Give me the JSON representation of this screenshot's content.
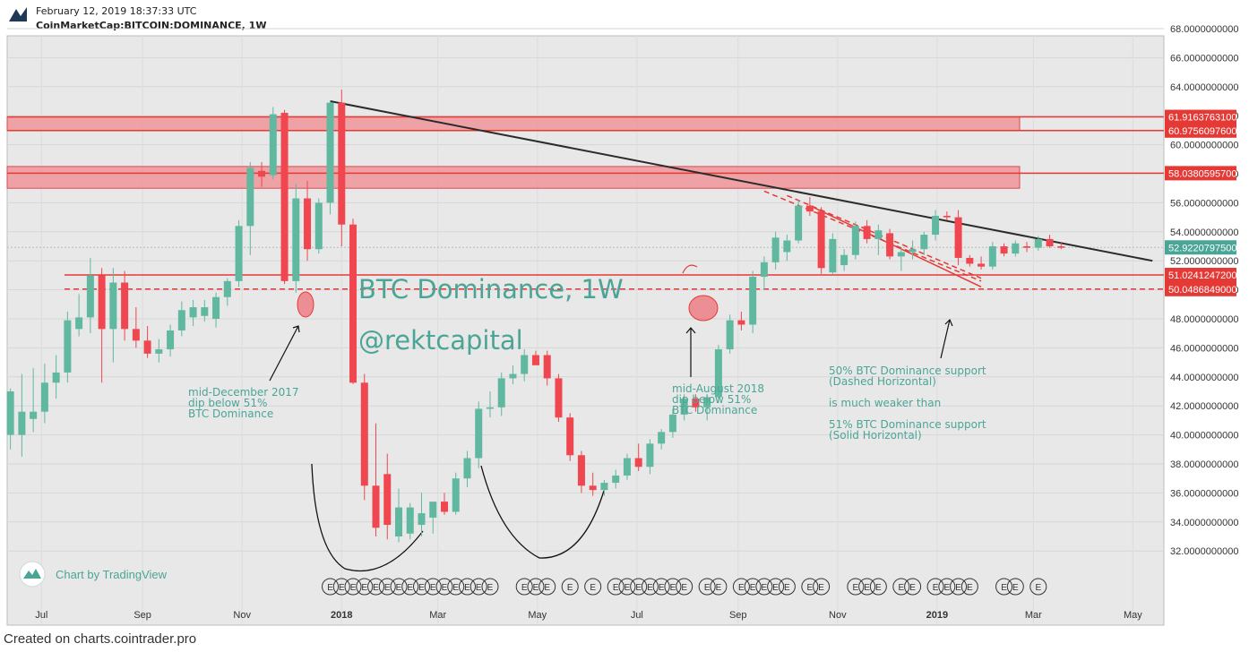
{
  "header": {
    "datetime": "February 12, 2019 18:37:33 UTC",
    "symbol": "CoinMarketCap:BITCOIN:DOMINANCE, 1W"
  },
  "footer": "Created on charts.cointrader.pro",
  "watermark": "Chart by TradingView",
  "chart_data": {
    "type": "candlestick",
    "title": "BTC Dominance, 1W",
    "subtitle": "@rektcapital",
    "ylim": [
      30.5,
      69
    ],
    "y_ticks": [
      "68.0000000000",
      "66.0000000000",
      "64.0000000000",
      "62.0000000000",
      "60.0000000000",
      "58.0000000000",
      "56.0000000000",
      "54.0000000000",
      "52.0000000000",
      "50.0000000000",
      "48.0000000000",
      "46.0000000000",
      "44.0000000000",
      "42.0000000000",
      "40.0000000000",
      "38.0000000000",
      "36.0000000000",
      "34.0000000000",
      "32.0000000000"
    ],
    "x_ticks": [
      "Jul",
      "Sep",
      "Nov",
      "2018",
      "Mar",
      "May",
      "Jul",
      "Sep",
      "Nov",
      "2019",
      "Mar",
      "May"
    ],
    "x_range": [
      "2017-06-10",
      "2019-05-20"
    ],
    "grid": true,
    "candles": [
      {
        "date": "2017-06-12",
        "o": 40.0,
        "h": 43.2,
        "l": 39.0,
        "c": 43.0
      },
      {
        "date": "2017-06-19",
        "o": 40.0,
        "h": 44.2,
        "l": 38.5,
        "c": 41.6
      },
      {
        "date": "2017-06-26",
        "o": 41.1,
        "h": 44.6,
        "l": 40.2,
        "c": 41.6
      },
      {
        "date": "2017-07-03",
        "o": 41.6,
        "h": 44.9,
        "l": 40.8,
        "c": 43.6
      },
      {
        "date": "2017-07-10",
        "o": 43.6,
        "h": 45.5,
        "l": 42.5,
        "c": 44.3
      },
      {
        "date": "2017-07-17",
        "o": 44.3,
        "h": 48.5,
        "l": 43.6,
        "c": 47.9
      },
      {
        "date": "2017-07-24",
        "o": 47.3,
        "h": 49.7,
        "l": 46.8,
        "c": 48.1
      },
      {
        "date": "2017-07-31",
        "o": 48.1,
        "h": 52.2,
        "l": 47.0,
        "c": 51.0
      },
      {
        "date": "2017-08-07",
        "o": 51.0,
        "h": 51.5,
        "l": 43.6,
        "c": 47.3
      },
      {
        "date": "2017-08-14",
        "o": 47.3,
        "h": 51.5,
        "l": 45.0,
        "c": 50.5
      },
      {
        "date": "2017-08-21",
        "o": 50.5,
        "h": 51.3,
        "l": 46.5,
        "c": 47.3
      },
      {
        "date": "2017-08-28",
        "o": 47.3,
        "h": 48.8,
        "l": 46.0,
        "c": 46.5
      },
      {
        "date": "2017-09-04",
        "o": 46.5,
        "h": 47.5,
        "l": 45.3,
        "c": 45.6
      },
      {
        "date": "2017-09-11",
        "o": 45.6,
        "h": 46.6,
        "l": 45.0,
        "c": 45.9
      },
      {
        "date": "2017-09-18",
        "o": 45.9,
        "h": 47.6,
        "l": 45.4,
        "c": 47.2
      },
      {
        "date": "2017-09-25",
        "o": 47.2,
        "h": 49.2,
        "l": 46.8,
        "c": 48.6
      },
      {
        "date": "2017-10-02",
        "o": 48.1,
        "h": 49.3,
        "l": 47.5,
        "c": 48.8
      },
      {
        "date": "2017-10-09",
        "o": 48.2,
        "h": 49.3,
        "l": 47.8,
        "c": 48.8
      },
      {
        "date": "2017-10-16",
        "o": 48.0,
        "h": 49.8,
        "l": 47.4,
        "c": 49.5
      },
      {
        "date": "2017-10-23",
        "o": 49.5,
        "h": 50.8,
        "l": 48.9,
        "c": 50.6
      },
      {
        "date": "2017-10-30",
        "o": 50.6,
        "h": 54.8,
        "l": 50.2,
        "c": 54.4
      },
      {
        "date": "2017-11-06",
        "o": 54.4,
        "h": 58.8,
        "l": 52.4,
        "c": 58.4
      },
      {
        "date": "2017-11-13",
        "o": 58.2,
        "h": 58.8,
        "l": 57.1,
        "c": 57.8
      },
      {
        "date": "2017-11-20",
        "o": 57.9,
        "h": 62.6,
        "l": 57.6,
        "c": 62.1
      },
      {
        "date": "2017-11-27",
        "o": 62.2,
        "h": 62.4,
        "l": 50.4,
        "c": 50.6
      },
      {
        "date": "2017-12-04",
        "o": 50.6,
        "h": 57.3,
        "l": 49.8,
        "c": 56.3
      },
      {
        "date": "2017-12-11",
        "o": 56.3,
        "h": 57.5,
        "l": 52.0,
        "c": 52.8
      },
      {
        "date": "2017-12-18",
        "o": 52.8,
        "h": 56.3,
        "l": 52.5,
        "c": 56.0
      },
      {
        "date": "2017-12-25",
        "o": 56.0,
        "h": 63.0,
        "l": 55.2,
        "c": 62.9
      },
      {
        "date": "2018-01-01",
        "o": 62.9,
        "h": 63.8,
        "l": 53.0,
        "c": 54.5
      },
      {
        "date": "2018-01-08",
        "o": 54.5,
        "h": 54.9,
        "l": 43.5,
        "c": 43.6
      },
      {
        "date": "2018-01-15",
        "o": 43.6,
        "h": 44.2,
        "l": 35.5,
        "c": 36.5
      },
      {
        "date": "2018-01-22",
        "o": 36.5,
        "h": 40.8,
        "l": 33.0,
        "c": 33.6
      },
      {
        "date": "2018-01-29",
        "o": 37.3,
        "h": 38.7,
        "l": 32.8,
        "c": 33.8
      },
      {
        "date": "2018-02-05",
        "o": 33.0,
        "h": 36.3,
        "l": 32.6,
        "c": 35.0
      },
      {
        "date": "2018-02-12",
        "o": 33.2,
        "h": 35.3,
        "l": 32.8,
        "c": 35.0
      },
      {
        "date": "2018-02-19",
        "o": 33.8,
        "h": 36.0,
        "l": 33.0,
        "c": 34.6
      },
      {
        "date": "2018-02-26",
        "o": 34.3,
        "h": 35.3,
        "l": 33.2,
        "c": 35.4
      },
      {
        "date": "2018-03-05",
        "o": 35.4,
        "h": 36.0,
        "l": 34.5,
        "c": 34.7
      },
      {
        "date": "2018-03-12",
        "o": 34.7,
        "h": 37.4,
        "l": 34.5,
        "c": 37.0
      },
      {
        "date": "2018-03-19",
        "o": 37.0,
        "h": 38.9,
        "l": 36.4,
        "c": 38.4
      },
      {
        "date": "2018-03-26",
        "o": 38.4,
        "h": 42.3,
        "l": 37.7,
        "c": 41.8
      },
      {
        "date": "2018-04-02",
        "o": 41.8,
        "h": 43.0,
        "l": 41.2,
        "c": 41.9
      },
      {
        "date": "2018-04-09",
        "o": 41.9,
        "h": 44.3,
        "l": 41.3,
        "c": 43.9
      },
      {
        "date": "2018-04-16",
        "o": 43.9,
        "h": 44.8,
        "l": 43.5,
        "c": 44.2
      },
      {
        "date": "2018-04-23",
        "o": 44.2,
        "h": 45.9,
        "l": 43.7,
        "c": 45.5
      },
      {
        "date": "2018-04-30",
        "o": 45.5,
        "h": 45.8,
        "l": 44.9,
        "c": 44.8
      },
      {
        "date": "2018-05-07",
        "o": 45.5,
        "h": 45.8,
        "l": 43.4,
        "c": 43.9
      },
      {
        "date": "2018-05-14",
        "o": 43.9,
        "h": 44.2,
        "l": 40.9,
        "c": 41.2
      },
      {
        "date": "2018-05-21",
        "o": 41.2,
        "h": 41.5,
        "l": 38.2,
        "c": 38.6
      },
      {
        "date": "2018-05-28",
        "o": 38.6,
        "h": 38.9,
        "l": 36.0,
        "c": 36.5
      },
      {
        "date": "2018-06-04",
        "o": 36.5,
        "h": 37.4,
        "l": 35.8,
        "c": 36.2
      },
      {
        "date": "2018-06-11",
        "o": 36.2,
        "h": 36.9,
        "l": 35.8,
        "c": 36.7
      },
      {
        "date": "2018-06-18",
        "o": 36.7,
        "h": 37.6,
        "l": 36.3,
        "c": 37.2
      },
      {
        "date": "2018-06-25",
        "o": 37.2,
        "h": 38.7,
        "l": 36.9,
        "c": 38.4
      },
      {
        "date": "2018-07-02",
        "o": 38.4,
        "h": 39.4,
        "l": 37.5,
        "c": 37.8
      },
      {
        "date": "2018-07-09",
        "o": 37.8,
        "h": 39.7,
        "l": 37.3,
        "c": 39.4
      },
      {
        "date": "2018-07-16",
        "o": 39.4,
        "h": 40.4,
        "l": 39.0,
        "c": 40.2
      },
      {
        "date": "2018-07-23",
        "o": 40.2,
        "h": 41.8,
        "l": 39.8,
        "c": 41.4
      },
      {
        "date": "2018-07-30",
        "o": 41.4,
        "h": 42.8,
        "l": 41.0,
        "c": 42.5
      },
      {
        "date": "2018-08-06",
        "o": 42.5,
        "h": 42.8,
        "l": 41.6,
        "c": 41.9
      },
      {
        "date": "2018-08-13",
        "o": 41.9,
        "h": 42.8,
        "l": 41.0,
        "c": 42.6
      },
      {
        "date": "2018-08-20",
        "o": 42.6,
        "h": 46.2,
        "l": 42.2,
        "c": 45.9
      },
      {
        "date": "2018-08-27",
        "o": 45.9,
        "h": 48.3,
        "l": 45.6,
        "c": 47.9
      },
      {
        "date": "2018-09-03",
        "o": 47.9,
        "h": 48.5,
        "l": 47.2,
        "c": 47.6
      },
      {
        "date": "2018-09-10",
        "o": 47.6,
        "h": 51.3,
        "l": 47.0,
        "c": 50.9
      },
      {
        "date": "2018-09-17",
        "o": 50.9,
        "h": 52.3,
        "l": 50.0,
        "c": 51.9
      },
      {
        "date": "2018-09-24",
        "o": 51.9,
        "h": 54.0,
        "l": 51.4,
        "c": 53.6
      },
      {
        "date": "2018-10-01",
        "o": 52.6,
        "h": 53.8,
        "l": 52.0,
        "c": 53.4
      },
      {
        "date": "2018-10-08",
        "o": 53.4,
        "h": 56.2,
        "l": 53.2,
        "c": 55.8
      },
      {
        "date": "2018-10-15",
        "o": 55.8,
        "h": 56.4,
        "l": 55.1,
        "c": 55.4
      },
      {
        "date": "2018-10-22",
        "o": 55.4,
        "h": 55.7,
        "l": 51.1,
        "c": 51.5
      },
      {
        "date": "2018-10-29",
        "o": 51.2,
        "h": 53.9,
        "l": 51.1,
        "c": 53.5
      },
      {
        "date": "2018-11-05",
        "o": 51.7,
        "h": 52.8,
        "l": 51.3,
        "c": 52.4
      },
      {
        "date": "2018-11-12",
        "o": 52.4,
        "h": 54.7,
        "l": 52.1,
        "c": 54.4
      },
      {
        "date": "2018-11-19",
        "o": 54.4,
        "h": 54.8,
        "l": 53.2,
        "c": 53.5
      },
      {
        "date": "2018-11-26",
        "o": 53.5,
        "h": 54.5,
        "l": 52.4,
        "c": 54.1
      },
      {
        "date": "2018-12-03",
        "o": 53.9,
        "h": 54.2,
        "l": 52.1,
        "c": 52.3
      },
      {
        "date": "2018-12-10",
        "o": 52.3,
        "h": 52.9,
        "l": 51.3,
        "c": 52.6
      },
      {
        "date": "2018-12-17",
        "o": 52.6,
        "h": 53.4,
        "l": 52.1,
        "c": 52.8
      },
      {
        "date": "2018-12-24",
        "o": 52.8,
        "h": 54.0,
        "l": 52.4,
        "c": 53.8
      },
      {
        "date": "2018-12-31",
        "o": 53.8,
        "h": 55.5,
        "l": 53.4,
        "c": 55.1
      },
      {
        "date": "2019-01-07",
        "o": 55.1,
        "h": 55.4,
        "l": 54.8,
        "c": 55.0
      },
      {
        "date": "2019-01-14",
        "o": 55.0,
        "h": 55.5,
        "l": 51.7,
        "c": 52.2
      },
      {
        "date": "2019-01-21",
        "o": 52.2,
        "h": 52.4,
        "l": 51.6,
        "c": 51.8
      },
      {
        "date": "2019-01-28",
        "o": 51.8,
        "h": 52.3,
        "l": 51.4,
        "c": 51.6
      },
      {
        "date": "2019-02-04",
        "o": 51.6,
        "h": 53.3,
        "l": 51.4,
        "c": 53.0
      },
      {
        "date": "2019-02-11",
        "o": 53.0,
        "h": 53.2,
        "l": 52.3,
        "c": 52.5
      },
      {
        "date": "2019-02-18",
        "o": 52.5,
        "h": 53.4,
        "l": 52.3,
        "c": 53.2
      },
      {
        "date": "2019-02-25",
        "o": 53.0,
        "h": 53.3,
        "l": 52.6,
        "c": 52.9
      },
      {
        "date": "2019-03-04",
        "o": 52.9,
        "h": 53.7,
        "l": 52.7,
        "c": 53.5
      },
      {
        "date": "2019-03-11",
        "o": 53.5,
        "h": 53.8,
        "l": 52.9,
        "c": 53.0
      },
      {
        "date": "2019-03-18",
        "o": 53.0,
        "h": 53.3,
        "l": 52.8,
        "c": 52.9
      }
    ],
    "zones": [
      {
        "from": 60.97560976,
        "to": 61.91637631
      },
      {
        "from": 57.0,
        "to": 58.5
      },
      {
        "from": 49.9,
        "to": 50.4
      }
    ],
    "levels": [
      {
        "value": 61.91637631,
        "label": "61.9163763100",
        "style": "solid"
      },
      {
        "value": 60.97560976,
        "label": "60.9756097600",
        "style": "solid"
      },
      {
        "value": 58.03805957,
        "label": "58.0380595700",
        "style": "solid"
      },
      {
        "value": 51.02412472,
        "label": "51.0241247200",
        "style": "solid"
      },
      {
        "value": 50.0486849,
        "label": "50.0486849000",
        "style": "dashed"
      }
    ],
    "last_price": {
      "value": 52.92207975,
      "label": "52.9220797500"
    },
    "trendline": {
      "from": [
        "2017-12-25",
        63.0
      ],
      "to": [
        "2019-05-13",
        52.0
      ]
    },
    "annotations": [
      {
        "lines": [
          "mid-December 2017",
          "dip below 51%",
          "BTC Dominance"
        ]
      },
      {
        "lines": [
          "mid-August 2018",
          "dip below 51%",
          "BTC Dominance"
        ]
      },
      {
        "lines": [
          "50% BTC Dominance support",
          "(Dashed Horizontal)",
          "",
          "is much weaker than",
          "",
          "51% BTC Dominance support",
          "(Solid Horizontal)"
        ]
      }
    ],
    "event_marker": "E",
    "colors": {
      "up": "#5fb89f",
      "down": "#ef4650",
      "zone": "#f28b8f",
      "level": "#e53935",
      "trend": "#2b2b2b",
      "annot": "#4aa597",
      "price_tag": "#4aa597"
    }
  }
}
